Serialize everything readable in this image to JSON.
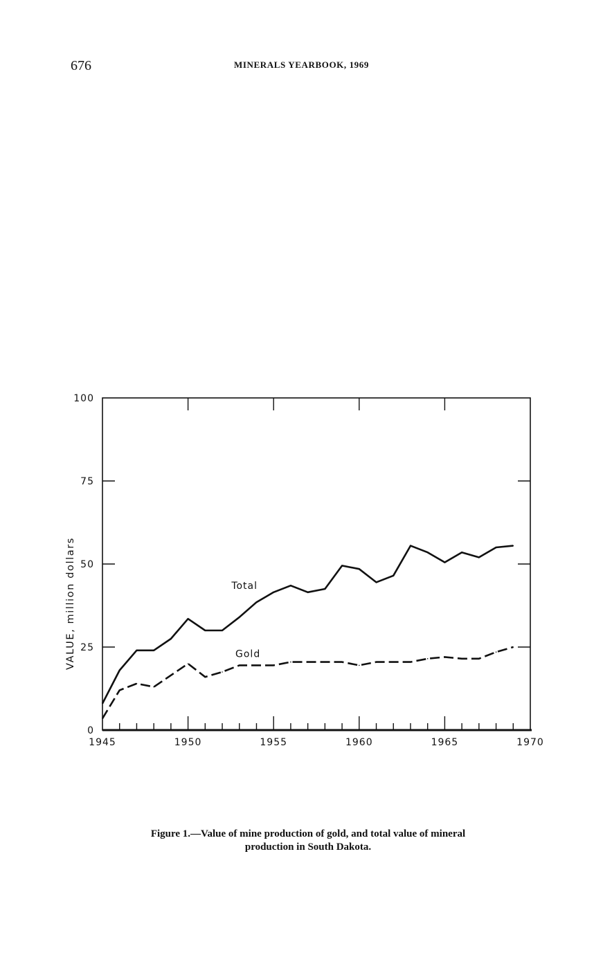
{
  "header": {
    "page_number": "676",
    "running_head": "MINERALS YEARBOOK, 1969"
  },
  "caption": {
    "line1": "Figure 1.—Value of mine production of gold, and total value of mineral",
    "line2": "production in South Dakota."
  },
  "chart_data": {
    "type": "line",
    "title": "",
    "xlabel": "",
    "ylabel": "VALUE, million dollars",
    "xlim": [
      1945,
      1970
    ],
    "ylim": [
      0,
      100
    ],
    "x_ticks": [
      1945,
      1950,
      1955,
      1960,
      1965,
      1970
    ],
    "x_tick_labels": [
      "1945",
      "1950",
      "1955",
      "1960",
      "1965",
      "1970"
    ],
    "y_ticks": [
      0,
      25,
      50,
      75,
      100
    ],
    "y_tick_labels": [
      "0",
      "25",
      "50",
      "75",
      "100"
    ],
    "grid": false,
    "legend": "inline labels",
    "series": [
      {
        "name": "Total",
        "style": "solid",
        "color": "#111111",
        "x": [
          1945,
          1946,
          1947,
          1948,
          1949,
          1950,
          1951,
          1952,
          1953,
          1954,
          1955,
          1956,
          1957,
          1958,
          1959,
          1960,
          1961,
          1962,
          1963,
          1964,
          1965,
          1966,
          1967,
          1968,
          1969
        ],
        "values": [
          8,
          18,
          24,
          24,
          27.5,
          33.5,
          30,
          30,
          34,
          38.5,
          41.5,
          43.5,
          41.5,
          42.5,
          49.5,
          48.5,
          44.5,
          46.5,
          55.5,
          53.5,
          50.5,
          53.5,
          52,
          55,
          55.5
        ]
      },
      {
        "name": "Gold",
        "style": "dashed",
        "color": "#111111",
        "x": [
          1945,
          1946,
          1947,
          1948,
          1949,
          1950,
          1951,
          1952,
          1953,
          1954,
          1955,
          1956,
          1957,
          1958,
          1959,
          1960,
          1961,
          1962,
          1963,
          1964,
          1965,
          1966,
          1967,
          1968,
          1969
        ],
        "values": [
          3.5,
          12,
          14,
          13,
          16.5,
          20,
          16,
          17.5,
          19.5,
          19.5,
          19.5,
          20.5,
          20.5,
          20.5,
          20.5,
          19.5,
          20.5,
          20.5,
          20.5,
          21.5,
          22,
          21.5,
          21.5,
          23.5,
          25
        ]
      }
    ]
  }
}
